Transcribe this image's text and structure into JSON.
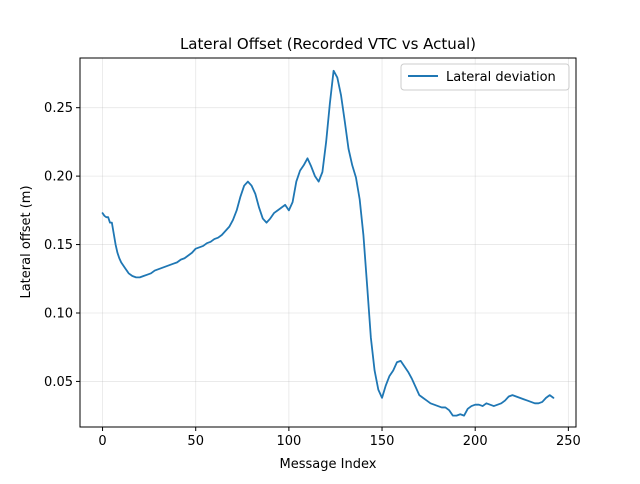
{
  "chart_data": {
    "type": "line",
    "title": "Lateral Offset (Recorded VTC vs Actual)",
    "xlabel": "Message Index",
    "ylabel": "Lateral offset (m)",
    "xlim": [
      -12.1,
      254.1
    ],
    "ylim": [
      0.0167,
      0.2863
    ],
    "x_ticks": [
      0,
      50,
      100,
      150,
      200,
      250
    ],
    "y_ticks": [
      0.05,
      0.1,
      0.15,
      0.2,
      0.25
    ],
    "x_tick_labels": [
      "0",
      "50",
      "100",
      "150",
      "200",
      "250"
    ],
    "y_tick_labels": [
      "0.05",
      "0.10",
      "0.15",
      "0.20",
      "0.25"
    ],
    "grid": true,
    "legend_position": "top-right",
    "series": [
      {
        "name": "Lateral deviation",
        "color": "#1f77b4",
        "x": [
          0,
          1,
          2,
          3,
          4,
          5,
          6,
          7,
          8,
          9,
          10,
          12,
          14,
          16,
          18,
          20,
          22,
          24,
          26,
          28,
          30,
          32,
          34,
          36,
          38,
          40,
          42,
          44,
          46,
          48,
          50,
          52,
          54,
          56,
          58,
          60,
          62,
          64,
          66,
          68,
          70,
          72,
          74,
          76,
          78,
          80,
          82,
          84,
          86,
          88,
          90,
          92,
          94,
          96,
          98,
          100,
          102,
          104,
          106,
          108,
          110,
          112,
          114,
          116,
          118,
          120,
          122,
          124,
          126,
          128,
          130,
          132,
          134,
          136,
          138,
          140,
          142,
          144,
          146,
          148,
          150,
          152,
          154,
          156,
          158,
          160,
          162,
          164,
          166,
          168,
          170,
          172,
          174,
          176,
          178,
          180,
          182,
          184,
          186,
          188,
          190,
          192,
          194,
          196,
          198,
          200,
          202,
          204,
          206,
          208,
          210,
          212,
          214,
          216,
          218,
          220,
          222,
          224,
          226,
          228,
          230,
          232,
          234,
          236,
          238,
          240,
          242
        ],
        "y": [
          0.173,
          0.171,
          0.17,
          0.17,
          0.166,
          0.166,
          0.158,
          0.15,
          0.144,
          0.14,
          0.137,
          0.133,
          0.129,
          0.127,
          0.126,
          0.126,
          0.127,
          0.128,
          0.129,
          0.131,
          0.132,
          0.133,
          0.134,
          0.135,
          0.136,
          0.137,
          0.139,
          0.14,
          0.142,
          0.144,
          0.147,
          0.148,
          0.149,
          0.151,
          0.152,
          0.154,
          0.155,
          0.157,
          0.16,
          0.163,
          0.168,
          0.175,
          0.185,
          0.193,
          0.196,
          0.193,
          0.187,
          0.177,
          0.169,
          0.166,
          0.169,
          0.173,
          0.175,
          0.177,
          0.179,
          0.175,
          0.181,
          0.196,
          0.204,
          0.208,
          0.213,
          0.207,
          0.2,
          0.196,
          0.203,
          0.225,
          0.253,
          0.277,
          0.272,
          0.259,
          0.24,
          0.22,
          0.208,
          0.199,
          0.183,
          0.157,
          0.12,
          0.082,
          0.058,
          0.044,
          0.038,
          0.047,
          0.054,
          0.058,
          0.064,
          0.065,
          0.061,
          0.057,
          0.052,
          0.046,
          0.04,
          0.038,
          0.036,
          0.034,
          0.033,
          0.032,
          0.031,
          0.031,
          0.029,
          0.025,
          0.025,
          0.026,
          0.025,
          0.03,
          0.032,
          0.033,
          0.033,
          0.032,
          0.034,
          0.033,
          0.032,
          0.033,
          0.034,
          0.036,
          0.039,
          0.04,
          0.039,
          0.038,
          0.037,
          0.036,
          0.035,
          0.034,
          0.034,
          0.035,
          0.038,
          0.04,
          0.038
        ]
      }
    ]
  }
}
